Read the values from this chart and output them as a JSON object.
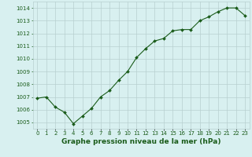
{
  "x": [
    0,
    1,
    2,
    3,
    4,
    5,
    6,
    7,
    8,
    9,
    10,
    11,
    12,
    13,
    14,
    15,
    16,
    17,
    18,
    19,
    20,
    21,
    22,
    23
  ],
  "y": [
    1006.9,
    1007.0,
    1006.2,
    1005.8,
    1004.9,
    1005.5,
    1006.1,
    1007.0,
    1007.5,
    1008.3,
    1009.0,
    1010.1,
    1010.8,
    1011.4,
    1011.6,
    1012.2,
    1012.3,
    1012.3,
    1013.0,
    1013.3,
    1013.7,
    1014.0,
    1014.0,
    1013.4
  ],
  "line_color": "#1a5c1a",
  "marker": "D",
  "marker_size": 2.0,
  "bg_color": "#d8f0f0",
  "grid_color": "#b8d0d0",
  "title": "Graphe pression niveau de la mer (hPa)",
  "xlabel_ticks": [
    "0",
    "1",
    "2",
    "3",
    "4",
    "5",
    "6",
    "7",
    "8",
    "9",
    "10",
    "11",
    "12",
    "13",
    "14",
    "15",
    "16",
    "17",
    "18",
    "19",
    "20",
    "21",
    "22",
    "23"
  ],
  "yticks": [
    1005,
    1006,
    1007,
    1008,
    1009,
    1010,
    1011,
    1012,
    1013,
    1014
  ],
  "ylim": [
    1004.5,
    1014.5
  ],
  "xlim": [
    -0.5,
    23.5
  ],
  "tick_color": "#1a5c1a",
  "tick_fontsize": 5.0,
  "title_fontsize": 6.5,
  "title_color": "#1a5c1a",
  "title_fontweight": "bold",
  "linewidth": 0.8
}
